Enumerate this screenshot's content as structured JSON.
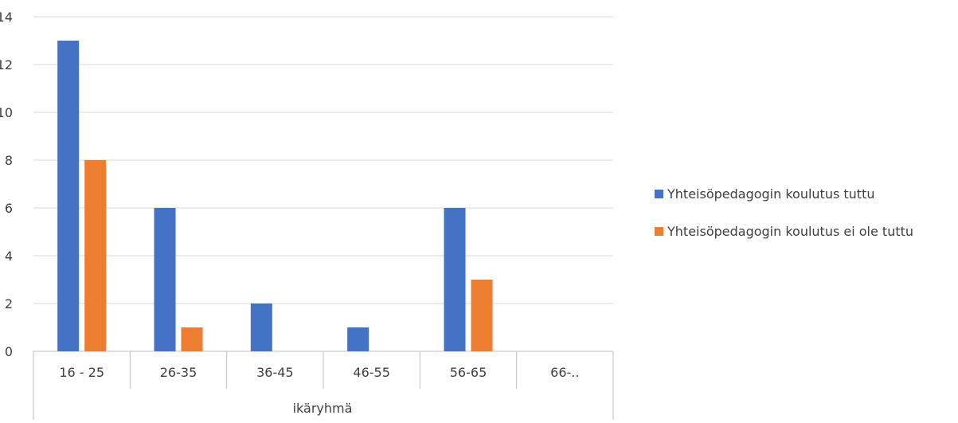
{
  "chart_data": {
    "type": "bar",
    "xlabel": "ikäryhmä",
    "ylabel": "",
    "ylim": [
      0,
      14
    ],
    "yticks": [
      0,
      2,
      4,
      6,
      8,
      10,
      12,
      14
    ],
    "grid": true,
    "legend_position": "right",
    "categories": [
      "16 - 25",
      "26-35",
      "36-45",
      "46-55",
      "56-65",
      "66-.."
    ],
    "series": [
      {
        "name": "Yhteisöpedagogin koulutus tuttu",
        "color": "#4472C4",
        "values": [
          13,
          6,
          2,
          1,
          6,
          0
        ]
      },
      {
        "name": "Yhteisöpedagogin koulutus ei ole tuttu",
        "color": "#ED7D31",
        "values": [
          8,
          1,
          0,
          0,
          3,
          0
        ]
      }
    ]
  }
}
